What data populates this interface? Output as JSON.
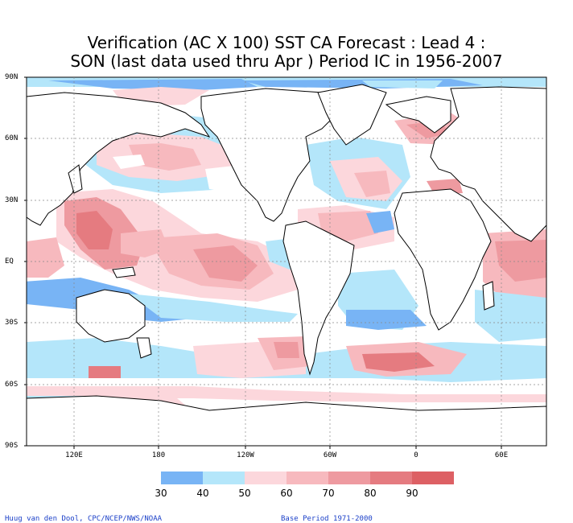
{
  "title": {
    "line1": "Verification (AC X 100) SST CA Forecast : Lead 4 :",
    "line2": "SON (last data used thru Apr ) Period IC in 1956-2007"
  },
  "map": {
    "lat_labels": [
      "90N",
      "60N",
      "30N",
      "EQ",
      "30S",
      "60S",
      "90S"
    ],
    "lon_labels": [
      "120E",
      "180",
      "120W",
      "60W",
      "0",
      "60E"
    ],
    "grid": "dotted",
    "projection": "cylindrical equidistant, centered on 150W"
  },
  "legend": {
    "levels": [
      "30",
      "40",
      "50",
      "60",
      "70",
      "80",
      "90"
    ],
    "colors": [
      "#78b4f5",
      "#b4e6fa",
      "#fcd7dc",
      "#f7b9be",
      "#ee9aa0",
      "#e57b80",
      "#dd6064"
    ]
  },
  "credits": {
    "left": "Huug van den Dool, CPC/NCEP/NWS/NOAA",
    "right": "Base Period 1971-2000"
  },
  "colors": {
    "land_outline": "#000000",
    "ocean_background": "#ffffff",
    "credit_text": "#1a3fc8"
  }
}
